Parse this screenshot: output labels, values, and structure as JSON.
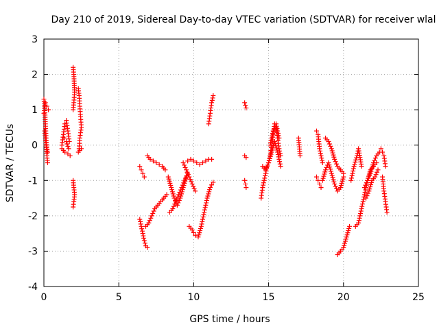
{
  "chart_data": {
    "type": "scatter",
    "title": "Day 210 of 2019, Sidereal Day-to-day VTEC variation (SDTVAR) for receiver wlal",
    "xlabel": "GPS time / hours",
    "ylabel": "SDTVAR / TECUs",
    "xlim": [
      0,
      25
    ],
    "ylim": [
      -4,
      3
    ],
    "xticks": [
      0,
      5,
      10,
      15,
      20,
      25
    ],
    "yticks": [
      -4,
      -3,
      -2,
      -1,
      0,
      1,
      2,
      3
    ],
    "xtick_labels": [
      "0",
      "5",
      "10",
      "15",
      "20",
      "25"
    ],
    "ytick_labels": [
      "-4",
      "-3",
      "-2",
      "-1",
      "0",
      "1",
      "2",
      "3"
    ],
    "grid": true,
    "marker": "+",
    "color": "#ff0000",
    "segments": [
      {
        "x": [
          0.0,
          0.05,
          0.1,
          0.15,
          0.2,
          0.25
        ],
        "y": [
          1.3,
          1.1,
          0.6,
          0.2,
          -0.3,
          -0.5
        ]
      },
      {
        "x": [
          0.0,
          0.1,
          0.2,
          0.3
        ],
        "y": [
          0.9,
          1.2,
          1.1,
          1.0
        ]
      },
      {
        "x": [
          0.05,
          0.15,
          0.25
        ],
        "y": [
          0.4,
          0.0,
          -0.2
        ]
      },
      {
        "x": [
          1.2,
          1.3,
          1.4,
          1.5,
          1.6,
          1.7
        ],
        "y": [
          0.0,
          0.3,
          0.6,
          0.7,
          0.4,
          0.1
        ]
      },
      {
        "x": [
          1.2,
          1.4,
          1.6,
          1.75
        ],
        "y": [
          -0.1,
          -0.2,
          -0.25,
          -0.3
        ]
      },
      {
        "x": [
          1.35,
          1.5,
          1.65
        ],
        "y": [
          0.2,
          0.1,
          -0.1
        ]
      },
      {
        "x": [
          1.95,
          2.0,
          2.05,
          2.0,
          1.95
        ],
        "y": [
          2.2,
          2.0,
          1.5,
          1.2,
          1.0
        ]
      },
      {
        "x": [
          1.95,
          2.0,
          2.05,
          2.0,
          1.95
        ],
        "y": [
          -1.0,
          -1.2,
          -1.4,
          -1.6,
          -1.75
        ]
      },
      {
        "x": [
          2.3,
          2.35,
          2.4,
          2.45,
          2.5,
          2.4,
          2.35
        ],
        "y": [
          1.6,
          1.4,
          1.1,
          0.8,
          0.5,
          0.2,
          -0.1
        ]
      },
      {
        "x": [
          2.3,
          2.4,
          2.5
        ],
        "y": [
          -0.2,
          -0.15,
          -0.1
        ]
      },
      {
        "x": [
          6.4,
          6.5,
          6.6,
          6.7,
          6.8,
          6.9
        ],
        "y": [
          -2.1,
          -2.3,
          -2.5,
          -2.7,
          -2.85,
          -2.9
        ]
      },
      {
        "x": [
          6.4,
          6.5,
          6.6,
          6.7
        ],
        "y": [
          -0.6,
          -0.7,
          -0.8,
          -0.9
        ]
      },
      {
        "x": [
          6.8,
          7.0,
          7.2,
          7.4,
          7.6,
          7.8,
          8.0,
          8.2
        ],
        "y": [
          -2.3,
          -2.2,
          -2.0,
          -1.8,
          -1.7,
          -1.6,
          -1.5,
          -1.4
        ]
      },
      {
        "x": [
          6.9,
          7.1,
          7.3,
          7.5,
          7.7,
          7.9,
          8.1
        ],
        "y": [
          -0.3,
          -0.4,
          -0.45,
          -0.5,
          -0.55,
          -0.6,
          -0.7
        ]
      },
      {
        "x": [
          8.3,
          8.5,
          8.7,
          8.9,
          9.1,
          9.3,
          9.5
        ],
        "y": [
          -0.9,
          -1.2,
          -1.5,
          -1.7,
          -1.5,
          -1.2,
          -0.9
        ]
      },
      {
        "x": [
          8.4,
          8.6,
          8.8,
          9.0,
          9.2,
          9.4,
          9.6
        ],
        "y": [
          -1.9,
          -1.8,
          -1.6,
          -1.4,
          -1.2,
          -1.0,
          -0.8
        ]
      },
      {
        "x": [
          9.3,
          9.5,
          9.7,
          9.9,
          10.1
        ],
        "y": [
          -0.5,
          -0.7,
          -0.9,
          -1.1,
          -1.3
        ]
      },
      {
        "x": [
          9.6,
          9.8,
          10.0,
          10.2,
          10.4,
          10.6,
          10.8,
          11.0,
          11.2
        ],
        "y": [
          -0.45,
          -0.4,
          -0.45,
          -0.5,
          -0.55,
          -0.5,
          -0.45,
          -0.4,
          -0.4
        ]
      },
      {
        "x": [
          9.7,
          9.9,
          10.1,
          10.3,
          10.5,
          10.7,
          10.9,
          11.1,
          11.3
        ],
        "y": [
          -2.3,
          -2.4,
          -2.55,
          -2.6,
          -2.3,
          -1.9,
          -1.5,
          -1.2,
          -1.05
        ]
      },
      {
        "x": [
          11.0,
          11.1,
          11.2,
          11.3
        ],
        "y": [
          0.6,
          0.9,
          1.2,
          1.4
        ]
      },
      {
        "x": [
          13.4,
          13.5
        ],
        "y": [
          1.2,
          1.05
        ]
      },
      {
        "x": [
          13.4,
          13.5
        ],
        "y": [
          -0.3,
          -0.35
        ]
      },
      {
        "x": [
          13.4,
          13.45,
          13.5
        ],
        "y": [
          -1.0,
          -1.1,
          -1.2
        ]
      },
      {
        "x": [
          14.5,
          14.6,
          14.7,
          14.8,
          14.9,
          15.0,
          15.1,
          15.2,
          15.3,
          15.4,
          15.5,
          15.6,
          15.7,
          15.8
        ],
        "y": [
          -1.5,
          -1.2,
          -1.0,
          -0.8,
          -0.6,
          -0.5,
          -0.3,
          0.0,
          0.3,
          0.6,
          0.5,
          0.2,
          -0.1,
          -0.3
        ]
      },
      {
        "x": [
          14.6,
          14.8,
          15.0,
          15.2,
          15.4,
          15.6,
          15.8
        ],
        "y": [
          -0.6,
          -0.7,
          -0.5,
          -0.2,
          0.1,
          -0.2,
          -0.6
        ]
      },
      {
        "x": [
          15.1,
          15.3,
          15.5,
          15.7
        ],
        "y": [
          0.0,
          0.4,
          0.6,
          0.2
        ]
      },
      {
        "x": [
          17.0,
          17.1
        ],
        "y": [
          0.2,
          -0.3
        ]
      },
      {
        "x": [
          18.2,
          18.3,
          18.4,
          18.5,
          18.6
        ],
        "y": [
          0.4,
          0.3,
          -0.1,
          -0.3,
          -0.5
        ]
      },
      {
        "x": [
          18.2,
          18.3,
          18.4,
          18.5
        ],
        "y": [
          -0.9,
          -1.0,
          -1.1,
          -1.2
        ]
      },
      {
        "x": [
          18.6,
          18.8,
          19.0,
          19.2,
          19.4,
          19.6,
          19.8,
          20.0
        ],
        "y": [
          -1.0,
          -0.7,
          -0.5,
          -0.8,
          -1.1,
          -1.3,
          -1.2,
          -0.9
        ]
      },
      {
        "x": [
          18.8,
          19.0,
          19.2,
          19.4,
          19.6,
          19.8,
          20.0
        ],
        "y": [
          0.2,
          0.1,
          -0.1,
          -0.4,
          -0.6,
          -0.7,
          -0.8
        ]
      },
      {
        "x": [
          19.6,
          19.8,
          20.0,
          20.2,
          20.4
        ],
        "y": [
          -3.1,
          -3.0,
          -2.9,
          -2.6,
          -2.3
        ]
      },
      {
        "x": [
          20.5,
          20.7,
          20.9,
          21.0,
          21.2
        ],
        "y": [
          -1.0,
          -0.6,
          -0.3,
          -0.1,
          -0.6
        ]
      },
      {
        "x": [
          20.8,
          21.0,
          21.2,
          21.4,
          21.6,
          21.8,
          22.0,
          22.2
        ],
        "y": [
          -2.3,
          -2.2,
          -1.8,
          -1.4,
          -1.0,
          -0.7,
          -0.6,
          -0.5
        ]
      },
      {
        "x": [
          21.4,
          21.6,
          21.8,
          22.0,
          22.2,
          22.4
        ],
        "y": [
          -1.2,
          -1.0,
          -0.8,
          -0.5,
          -0.3,
          -0.2
        ]
      },
      {
        "x": [
          21.5,
          21.7,
          21.9,
          22.1,
          22.3
        ],
        "y": [
          -1.5,
          -1.3,
          -1.0,
          -0.9,
          -0.7
        ]
      },
      {
        "x": [
          22.5,
          22.6,
          22.7,
          22.8
        ],
        "y": [
          -0.1,
          -0.2,
          -0.3,
          -0.6
        ]
      },
      {
        "x": [
          22.6,
          22.7,
          22.8,
          22.9
        ],
        "y": [
          -0.9,
          -1.3,
          -1.6,
          -1.9
        ]
      }
    ]
  }
}
